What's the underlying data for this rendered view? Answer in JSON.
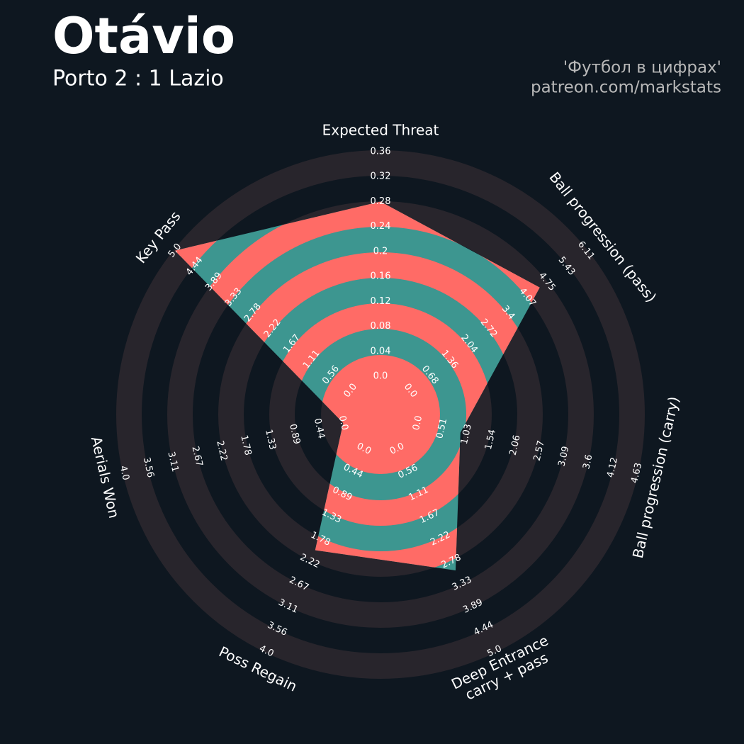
{
  "chart_data": {
    "type": "radar",
    "title": "Otávio",
    "subtitle": "Porto 2 : 1 Lazio",
    "annotations": [
      "'Футбол в цифрах'",
      "patreon.com/markstats"
    ],
    "categories": [
      "Expected Threat",
      "Ball progression (pass)",
      "Ball progression (carry)",
      "Deep Entrance\ncarry + pass",
      "Poss Regain",
      "Aerials Won",
      "Key Pass"
    ],
    "values": [
      0.28,
      4.5,
      0.9,
      3.0,
      2.0,
      0,
      5.0
    ],
    "rlims": [
      [
        0,
        0.36
      ],
      [
        0,
        6.11
      ],
      [
        0,
        4.63
      ],
      [
        0,
        5
      ],
      [
        0,
        4
      ],
      [
        0,
        4
      ],
      [
        0,
        5
      ]
    ],
    "rticks": [
      [
        {
          "value": 0,
          "label": "0.0"
        },
        0.04,
        0.08,
        0.12,
        0.16,
        0.2,
        0.24,
        0.28,
        0.32,
        0.36
      ],
      [
        {
          "value": 0,
          "label": "0.0"
        },
        0.68,
        1.36,
        2.04,
        2.72,
        3.4,
        4.07,
        4.75,
        5.43,
        6.11
      ],
      [
        {
          "value": 0,
          "label": "0.0"
        },
        0.51,
        1.03,
        1.54,
        2.06,
        2.57,
        3.09,
        3.6,
        4.12,
        4.63
      ],
      [
        {
          "value": 0,
          "label": "0.0"
        },
        0.56,
        1.11,
        1.67,
        2.22,
        2.78,
        3.33,
        3.89,
        4.44,
        {
          "value": 5,
          "label": "5.0"
        }
      ],
      [
        {
          "value": 0,
          "label": "0.0"
        },
        0.44,
        0.89,
        1.33,
        1.78,
        2.22,
        2.67,
        3.11,
        3.56,
        {
          "value": 4,
          "label": "4.0"
        }
      ],
      [
        {
          "value": 0,
          "label": "0.0"
        },
        0.44,
        0.89,
        1.33,
        1.78,
        2.22,
        2.67,
        3.11,
        3.56,
        {
          "value": 4,
          "label": "4.0"
        }
      ],
      [
        {
          "value": 0,
          "label": "0.0"
        },
        0.56,
        1.11,
        1.67,
        2.22,
        2.78,
        3.33,
        3.89,
        4.44,
        {
          "value": 5,
          "label": "5.0"
        }
      ]
    ],
    "color": "#3d9690",
    "highlight_color": "#ff6b66",
    "ring_color": "#28252c"
  }
}
